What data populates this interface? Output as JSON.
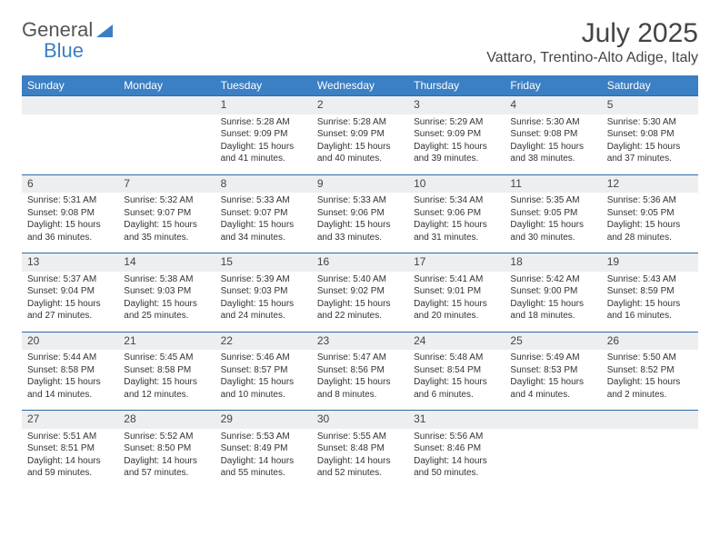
{
  "logo": {
    "part1": "General",
    "part2": "Blue"
  },
  "title": "July 2025",
  "location": "Vattaro, Trentino-Alto Adige, Italy",
  "colors": {
    "header_bg": "#3b7fc4",
    "header_text": "#ffffff",
    "row_sep": "#2e6aa8",
    "daynum_bg": "#eceef0",
    "text": "#333333"
  },
  "day_headers": [
    "Sunday",
    "Monday",
    "Tuesday",
    "Wednesday",
    "Thursday",
    "Friday",
    "Saturday"
  ],
  "weeks": [
    [
      null,
      null,
      {
        "n": "1",
        "sr": "Sunrise: 5:28 AM",
        "ss": "Sunset: 9:09 PM",
        "dl": "Daylight: 15 hours and 41 minutes."
      },
      {
        "n": "2",
        "sr": "Sunrise: 5:28 AM",
        "ss": "Sunset: 9:09 PM",
        "dl": "Daylight: 15 hours and 40 minutes."
      },
      {
        "n": "3",
        "sr": "Sunrise: 5:29 AM",
        "ss": "Sunset: 9:09 PM",
        "dl": "Daylight: 15 hours and 39 minutes."
      },
      {
        "n": "4",
        "sr": "Sunrise: 5:30 AM",
        "ss": "Sunset: 9:08 PM",
        "dl": "Daylight: 15 hours and 38 minutes."
      },
      {
        "n": "5",
        "sr": "Sunrise: 5:30 AM",
        "ss": "Sunset: 9:08 PM",
        "dl": "Daylight: 15 hours and 37 minutes."
      }
    ],
    [
      {
        "n": "6",
        "sr": "Sunrise: 5:31 AM",
        "ss": "Sunset: 9:08 PM",
        "dl": "Daylight: 15 hours and 36 minutes."
      },
      {
        "n": "7",
        "sr": "Sunrise: 5:32 AM",
        "ss": "Sunset: 9:07 PM",
        "dl": "Daylight: 15 hours and 35 minutes."
      },
      {
        "n": "8",
        "sr": "Sunrise: 5:33 AM",
        "ss": "Sunset: 9:07 PM",
        "dl": "Daylight: 15 hours and 34 minutes."
      },
      {
        "n": "9",
        "sr": "Sunrise: 5:33 AM",
        "ss": "Sunset: 9:06 PM",
        "dl": "Daylight: 15 hours and 33 minutes."
      },
      {
        "n": "10",
        "sr": "Sunrise: 5:34 AM",
        "ss": "Sunset: 9:06 PM",
        "dl": "Daylight: 15 hours and 31 minutes."
      },
      {
        "n": "11",
        "sr": "Sunrise: 5:35 AM",
        "ss": "Sunset: 9:05 PM",
        "dl": "Daylight: 15 hours and 30 minutes."
      },
      {
        "n": "12",
        "sr": "Sunrise: 5:36 AM",
        "ss": "Sunset: 9:05 PM",
        "dl": "Daylight: 15 hours and 28 minutes."
      }
    ],
    [
      {
        "n": "13",
        "sr": "Sunrise: 5:37 AM",
        "ss": "Sunset: 9:04 PM",
        "dl": "Daylight: 15 hours and 27 minutes."
      },
      {
        "n": "14",
        "sr": "Sunrise: 5:38 AM",
        "ss": "Sunset: 9:03 PM",
        "dl": "Daylight: 15 hours and 25 minutes."
      },
      {
        "n": "15",
        "sr": "Sunrise: 5:39 AM",
        "ss": "Sunset: 9:03 PM",
        "dl": "Daylight: 15 hours and 24 minutes."
      },
      {
        "n": "16",
        "sr": "Sunrise: 5:40 AM",
        "ss": "Sunset: 9:02 PM",
        "dl": "Daylight: 15 hours and 22 minutes."
      },
      {
        "n": "17",
        "sr": "Sunrise: 5:41 AM",
        "ss": "Sunset: 9:01 PM",
        "dl": "Daylight: 15 hours and 20 minutes."
      },
      {
        "n": "18",
        "sr": "Sunrise: 5:42 AM",
        "ss": "Sunset: 9:00 PM",
        "dl": "Daylight: 15 hours and 18 minutes."
      },
      {
        "n": "19",
        "sr": "Sunrise: 5:43 AM",
        "ss": "Sunset: 8:59 PM",
        "dl": "Daylight: 15 hours and 16 minutes."
      }
    ],
    [
      {
        "n": "20",
        "sr": "Sunrise: 5:44 AM",
        "ss": "Sunset: 8:58 PM",
        "dl": "Daylight: 15 hours and 14 minutes."
      },
      {
        "n": "21",
        "sr": "Sunrise: 5:45 AM",
        "ss": "Sunset: 8:58 PM",
        "dl": "Daylight: 15 hours and 12 minutes."
      },
      {
        "n": "22",
        "sr": "Sunrise: 5:46 AM",
        "ss": "Sunset: 8:57 PM",
        "dl": "Daylight: 15 hours and 10 minutes."
      },
      {
        "n": "23",
        "sr": "Sunrise: 5:47 AM",
        "ss": "Sunset: 8:56 PM",
        "dl": "Daylight: 15 hours and 8 minutes."
      },
      {
        "n": "24",
        "sr": "Sunrise: 5:48 AM",
        "ss": "Sunset: 8:54 PM",
        "dl": "Daylight: 15 hours and 6 minutes."
      },
      {
        "n": "25",
        "sr": "Sunrise: 5:49 AM",
        "ss": "Sunset: 8:53 PM",
        "dl": "Daylight: 15 hours and 4 minutes."
      },
      {
        "n": "26",
        "sr": "Sunrise: 5:50 AM",
        "ss": "Sunset: 8:52 PM",
        "dl": "Daylight: 15 hours and 2 minutes."
      }
    ],
    [
      {
        "n": "27",
        "sr": "Sunrise: 5:51 AM",
        "ss": "Sunset: 8:51 PM",
        "dl": "Daylight: 14 hours and 59 minutes."
      },
      {
        "n": "28",
        "sr": "Sunrise: 5:52 AM",
        "ss": "Sunset: 8:50 PM",
        "dl": "Daylight: 14 hours and 57 minutes."
      },
      {
        "n": "29",
        "sr": "Sunrise: 5:53 AM",
        "ss": "Sunset: 8:49 PM",
        "dl": "Daylight: 14 hours and 55 minutes."
      },
      {
        "n": "30",
        "sr": "Sunrise: 5:55 AM",
        "ss": "Sunset: 8:48 PM",
        "dl": "Daylight: 14 hours and 52 minutes."
      },
      {
        "n": "31",
        "sr": "Sunrise: 5:56 AM",
        "ss": "Sunset: 8:46 PM",
        "dl": "Daylight: 14 hours and 50 minutes."
      },
      null,
      null
    ]
  ]
}
